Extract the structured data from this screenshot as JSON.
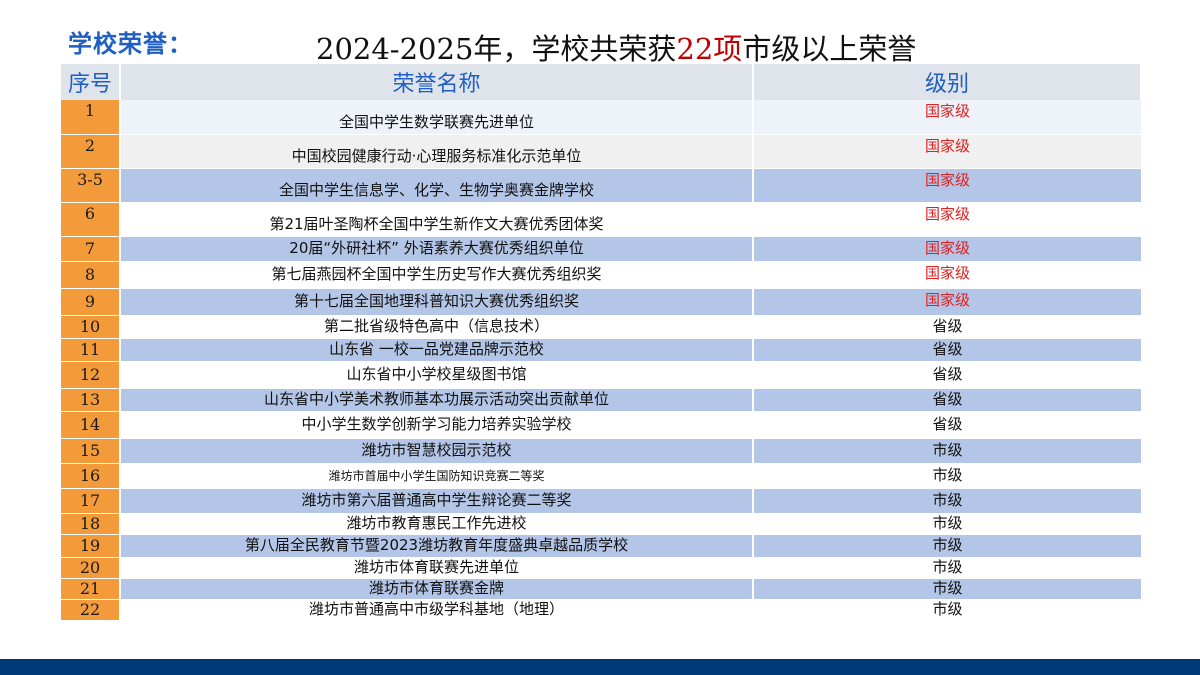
{
  "header": {
    "section_label": "学校荣誉：",
    "title_prefix": "2024-2025年，学校共荣获",
    "title_count": "22项",
    "title_suffix": "市级以上荣誉"
  },
  "table": {
    "columns": [
      "序号",
      "荣誉名称",
      "级别"
    ],
    "rows": [
      {
        "no": "1",
        "name": "全国中学生数学联赛先进单位",
        "level": "国家级"
      },
      {
        "no": "2",
        "name": "中国校园健康行动·心理服务标准化示范单位",
        "level": "国家级"
      },
      {
        "no": "3-5",
        "name": "全国中学生信息学、化学、生物学奥赛金牌学校",
        "level": "国家级"
      },
      {
        "no": "6",
        "name": "第21届叶圣陶杯全国中学生新作文大赛优秀团体奖",
        "level": "国家级"
      },
      {
        "no": "7",
        "name": "20届“外研社杯” 外语素养大赛优秀组织单位",
        "level": "国家级"
      },
      {
        "no": "8",
        "name": "第七届燕园杯全国中学生历史写作大赛优秀组织奖",
        "level": "国家级"
      },
      {
        "no": "9",
        "name": "第十七届全国地理科普知识大赛优秀组织奖",
        "level": "国家级"
      },
      {
        "no": "10",
        "name": "第二批省级特色高中（信息技术）",
        "level": "省级"
      },
      {
        "no": "11",
        "name": "山东省 一校一品党建品牌示范校",
        "level": "省级"
      },
      {
        "no": "12",
        "name": "山东省中小学校星级图书馆",
        "level": "省级"
      },
      {
        "no": "13",
        "name": "山东省中小学美术教师基本功展示活动突出贡献单位",
        "level": "省级"
      },
      {
        "no": "14",
        "name": "中小学生数学创新学习能力培养实验学校",
        "level": "省级"
      },
      {
        "no": "15",
        "name": "潍坊市智慧校园示范校",
        "level": "市级"
      },
      {
        "no": "16",
        "name": "潍坊市首届中小学生国防知识竞赛二等奖",
        "level": "市级"
      },
      {
        "no": "17",
        "name": "潍坊市第六届普通高中学生辩论赛二等奖",
        "level": "市级"
      },
      {
        "no": "18",
        "name": "潍坊市教育惠民工作先进校",
        "level": "市级"
      },
      {
        "no": "19",
        "name": "第八届全民教育节暨2023潍坊教育年度盛典卓越品质学校",
        "level": "市级"
      },
      {
        "no": "20",
        "name": "潍坊市体育联赛先进单位",
        "level": "市级"
      },
      {
        "no": "21",
        "name": "潍坊市体育联赛金牌",
        "level": "市级"
      },
      {
        "no": "22",
        "name": "潍坊市普通高中市级学科基地（地理）",
        "level": "市级"
      }
    ]
  },
  "colors": {
    "accent_blue": "#1f5fc4",
    "number_orange": "#f39a3a",
    "row_blue": "#b4c6e7",
    "national_red": "#e02020",
    "footer_navy": "#003a78"
  }
}
